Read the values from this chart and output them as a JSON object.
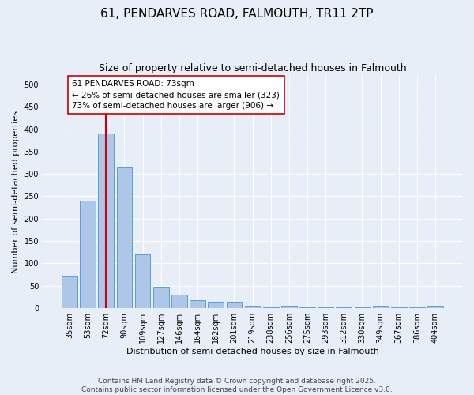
{
  "title_line1": "61, PENDARVES ROAD, FALMOUTH, TR11 2TP",
  "title_line2": "Size of property relative to semi-detached houses in Falmouth",
  "xlabel": "Distribution of semi-detached houses by size in Falmouth",
  "ylabel": "Number of semi-detached properties",
  "categories": [
    "35sqm",
    "53sqm",
    "72sqm",
    "90sqm",
    "109sqm",
    "127sqm",
    "146sqm",
    "164sqm",
    "182sqm",
    "201sqm",
    "219sqm",
    "238sqm",
    "256sqm",
    "275sqm",
    "293sqm",
    "312sqm",
    "330sqm",
    "349sqm",
    "367sqm",
    "386sqm",
    "404sqm"
  ],
  "values": [
    70,
    240,
    390,
    315,
    120,
    47,
    30,
    18,
    15,
    15,
    6,
    2,
    5,
    2,
    2,
    2,
    2,
    5,
    2,
    2,
    5
  ],
  "bar_color": "#aec6e8",
  "bar_edge_color": "#5a9fd4",
  "vline_x": 2,
  "vline_color": "#cc0000",
  "annotation_line1": "61 PENDARVES ROAD: 73sqm",
  "annotation_line2": "← 26% of semi-detached houses are smaller (323)",
  "annotation_line3": "73% of semi-detached houses are larger (906) →",
  "annotation_box_color": "#ffffff",
  "annotation_box_edge": "#cc0000",
  "ylim": [
    0,
    520
  ],
  "yticks": [
    0,
    50,
    100,
    150,
    200,
    250,
    300,
    350,
    400,
    450,
    500
  ],
  "background_color": "#e8eef7",
  "plot_bg_color": "#e8eef7",
  "footer_text": "Contains HM Land Registry data © Crown copyright and database right 2025.\nContains public sector information licensed under the Open Government Licence v3.0.",
  "title_fontsize": 11,
  "subtitle_fontsize": 9,
  "axis_label_fontsize": 8,
  "tick_fontsize": 7,
  "annotation_fontsize": 7.5,
  "footer_fontsize": 6.5
}
